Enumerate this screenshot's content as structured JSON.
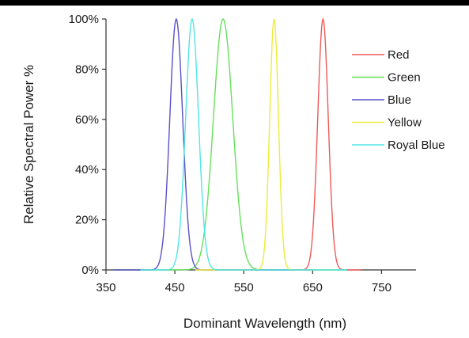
{
  "chart_data": {
    "type": "line",
    "title": "",
    "xlabel": "Dominant Wavelength (nm)",
    "ylabel": "Relative Spectral Power %",
    "xlim": [
      350,
      800
    ],
    "ylim": [
      0,
      100
    ],
    "x_ticks": [
      350,
      450,
      550,
      650,
      750
    ],
    "x_tick_labels": [
      "350",
      "450",
      "550",
      "650",
      "750"
    ],
    "y_ticks": [
      0,
      20,
      40,
      60,
      80,
      100
    ],
    "y_tick_labels": [
      "0%",
      "20%",
      "40%",
      "60%",
      "80%",
      "100%"
    ],
    "grid": false,
    "legend_position": "top-right",
    "series": [
      {
        "name": "Red",
        "color": "#ee5a5a",
        "peak_nm": 665,
        "peak_value": 100,
        "fwhm_nm": 18,
        "x_min": 520,
        "x_max": 720
      },
      {
        "name": "Green",
        "color": "#66e05a",
        "peak_nm": 520,
        "peak_value": 100,
        "fwhm_nm": 33,
        "x_min": 360,
        "x_max": 700
      },
      {
        "name": "Blue",
        "color": "#5a50c8",
        "peak_nm": 452,
        "peak_value": 100,
        "fwhm_nm": 22,
        "x_min": 360,
        "x_max": 650
      },
      {
        "name": "Yellow",
        "color": "#ecec3a",
        "peak_nm": 594,
        "peak_value": 100,
        "fwhm_nm": 15,
        "x_min": 480,
        "x_max": 680
      },
      {
        "name": "Royal Blue",
        "color": "#50e6e6",
        "peak_nm": 475,
        "peak_value": 100,
        "fwhm_nm": 22,
        "x_min": 400,
        "x_max": 700
      }
    ]
  }
}
